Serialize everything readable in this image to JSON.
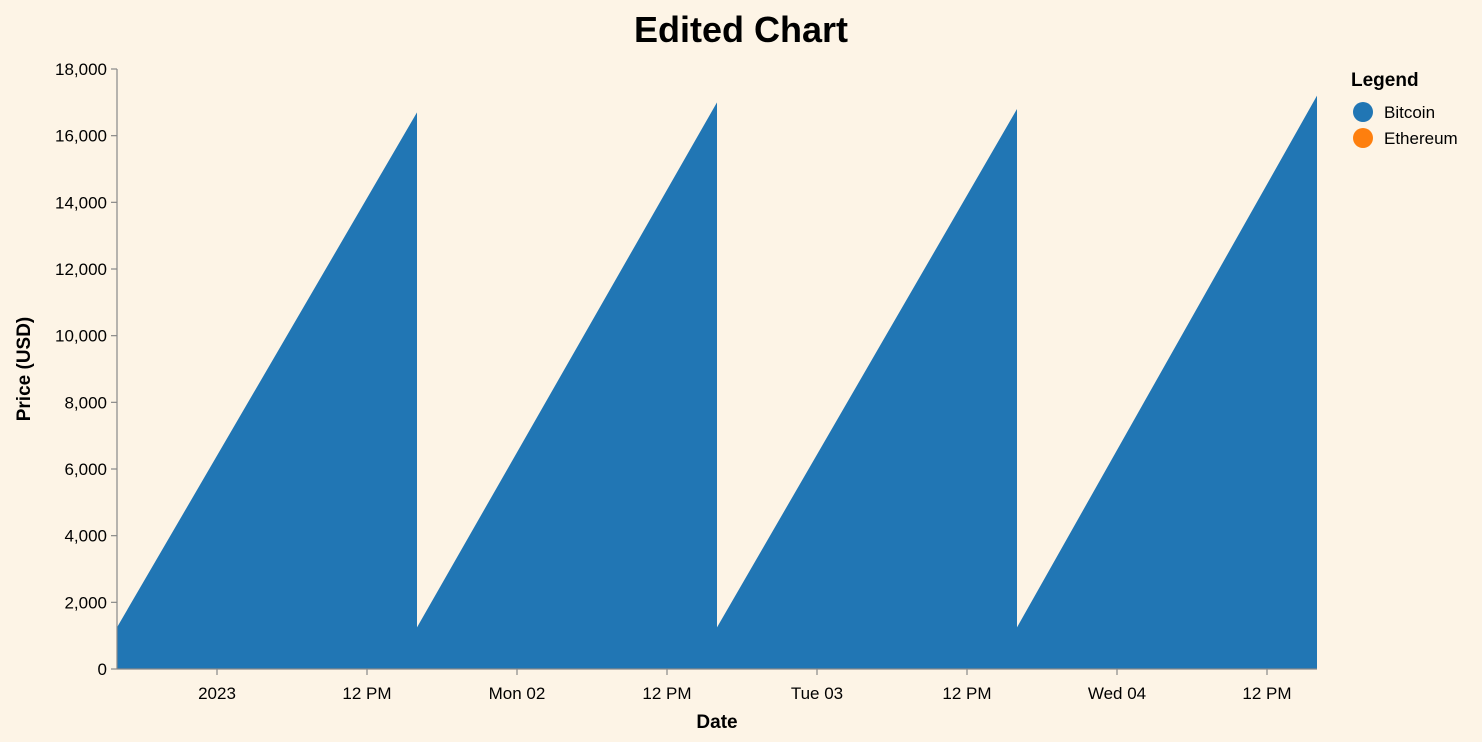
{
  "chart_data": {
    "type": "area",
    "title": "Edited Chart",
    "xlabel": "Date",
    "ylabel": "Price (USD)",
    "x_axis_kind": "time",
    "xlim": [
      "2023-01-01T00:00",
      "2023-01-05T00:00"
    ],
    "ylim": [
      0,
      18000
    ],
    "y_ticks": [
      0,
      2000,
      4000,
      6000,
      8000,
      10000,
      12000,
      14000,
      16000,
      18000
    ],
    "y_tick_labels": [
      "0",
      "2,000",
      "4,000",
      "6,000",
      "8,000",
      "10,000",
      "12,000",
      "14,000",
      "16,000",
      "18,000"
    ],
    "x_ticks": [
      "2023-01-01T08:00",
      "2023-01-01T20:00",
      "2023-01-02T08:00",
      "2023-01-02T20:00",
      "2023-01-03T08:00",
      "2023-01-03T20:00",
      "2023-01-04T08:00",
      "2023-01-04T20:00"
    ],
    "x_tick_labels": [
      "2023",
      "12 PM",
      "Mon 02",
      "12 PM",
      "Tue 03",
      "12 PM",
      "Wed 04",
      "12 PM"
    ],
    "grid": false,
    "legend": {
      "title": "Legend",
      "position": "right",
      "items": [
        {
          "label": "Bitcoin",
          "color": "#2176b4"
        },
        {
          "label": "Ethereum",
          "color": "#fe7f0e"
        }
      ]
    },
    "series": [
      {
        "name": "Bitcoin",
        "color": "#2176b4",
        "x": [
          "2023-01-01T00:00",
          "2023-01-02T00:00",
          "2023-01-02T00:00",
          "2023-01-03T00:00",
          "2023-01-03T00:00",
          "2023-01-04T00:00",
          "2023-01-04T00:00",
          "2023-01-05T00:00"
        ],
        "values": [
          1250,
          16700,
          1250,
          17000,
          1250,
          16800,
          1250,
          17200
        ]
      }
    ]
  }
}
